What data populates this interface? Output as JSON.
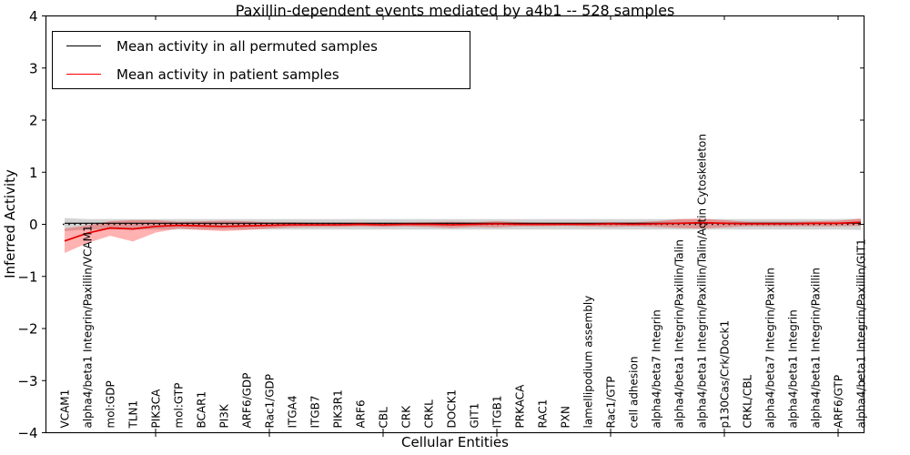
{
  "chart_data": {
    "type": "line",
    "title": "Paxillin-dependent events mediated by a4b1 -- 528 samples",
    "xlabel": "Cellular Entities",
    "ylabel": "Inferred Activity",
    "ylim": [
      -4,
      4
    ],
    "grid": false,
    "legend_position": "upper left",
    "yticks": [
      4,
      3,
      2,
      1,
      0,
      -1,
      -2,
      -3,
      -4
    ],
    "ytick_labels": [
      "4",
      "3",
      "2",
      "1",
      "0",
      "−1",
      "−2",
      "−3",
      "−4"
    ],
    "x_major_tick_indices": [
      4,
      9,
      14,
      19,
      24,
      29,
      34
    ],
    "categories": [
      "VCAM1",
      "alpha4/beta1 Integrin/Paxillin/VCAM1",
      "mol:GDP",
      "TLN1",
      "PIK3CA",
      "mol:GTP",
      "BCAR1",
      "PI3K",
      "ARF6/GDP",
      "Rac1/GDP",
      "ITGA4",
      "ITGB7",
      "PIK3R1",
      "ARF6",
      "CBL",
      "CRK",
      "CRKL",
      "DOCK1",
      "GIT1",
      "ITGB1",
      "PRKACA",
      "RAC1",
      "PXN",
      "lamellipodium assembly",
      "Rac1/GTP",
      "cell adhesion",
      "alpha4/beta7 Integrin",
      "alpha4/beta1 Integrin/Paxillin/Talin",
      "alpha4/beta1 Integrin/Paxillin/Talin/Actin Cytoskeleton",
      "p130Cas/Crk/Dock1",
      "CRKL/CBL",
      "alpha4/beta7 Integrin/Paxillin",
      "alpha4/beta1 Integrin",
      "alpha4/beta1 Integrin/Paxillin",
      "ARF6/GTP",
      "alpha4/beta1 Integrin/Paxillin/GIT1"
    ],
    "series": [
      {
        "name": "Mean activity in all permuted samples",
        "color": "#000000",
        "style": "solid",
        "line_width": 1.1,
        "values": [
          0.02,
          0.02,
          0.02,
          0.02,
          0.02,
          0.02,
          0.02,
          0.02,
          0.02,
          0.02,
          0.02,
          0.02,
          0.02,
          0.02,
          0.02,
          0.02,
          0.02,
          0.02,
          0.02,
          0.02,
          0.02,
          0.02,
          0.02,
          0.02,
          0.02,
          0.02,
          0.02,
          0.02,
          0.02,
          0.02,
          0.02,
          0.02,
          0.02,
          0.02,
          0.02,
          0.02
        ]
      },
      {
        "name": "Mean activity in patient samples",
        "color": "#e60000",
        "style": "solid",
        "line_width": 1.7,
        "values": [
          -0.32,
          -0.17,
          -0.07,
          -0.09,
          -0.04,
          -0.02,
          -0.03,
          -0.04,
          -0.03,
          -0.02,
          -0.01,
          -0.01,
          -0.01,
          0.0,
          -0.01,
          0.0,
          0.0,
          -0.01,
          0.0,
          0.01,
          0.0,
          0.0,
          0.0,
          0.0,
          0.01,
          0.0,
          0.01,
          0.02,
          0.03,
          0.02,
          0.01,
          0.01,
          0.01,
          0.02,
          0.02,
          0.04
        ]
      }
    ],
    "bands": [
      {
        "name": "permuted-samples-spread-band",
        "color": "rgba(110,110,110,0.30)",
        "upper": [
          0.12,
          0.1,
          0.1,
          0.1,
          0.1,
          0.1,
          0.1,
          0.1,
          0.1,
          0.1,
          0.1,
          0.1,
          0.1,
          0.1,
          0.1,
          0.1,
          0.1,
          0.1,
          0.1,
          0.1,
          0.1,
          0.1,
          0.1,
          0.1,
          0.1,
          0.1,
          0.1,
          0.1,
          0.1,
          0.1,
          0.1,
          0.1,
          0.1,
          0.1,
          0.1,
          0.11
        ],
        "lower": [
          -0.13,
          -0.1,
          -0.1,
          -0.1,
          -0.1,
          -0.1,
          -0.1,
          -0.1,
          -0.1,
          -0.1,
          -0.1,
          -0.1,
          -0.1,
          -0.1,
          -0.1,
          -0.1,
          -0.1,
          -0.1,
          -0.1,
          -0.1,
          -0.1,
          -0.1,
          -0.1,
          -0.1,
          -0.1,
          -0.1,
          -0.1,
          -0.1,
          -0.1,
          -0.1,
          -0.1,
          -0.1,
          -0.1,
          -0.1,
          -0.1,
          -0.11
        ]
      },
      {
        "name": "patient-samples-spread-band",
        "color": "rgba(255,0,0,0.30)",
        "upper": [
          -0.08,
          -0.02,
          0.06,
          0.08,
          0.08,
          0.05,
          0.06,
          0.07,
          0.06,
          0.04,
          0.04,
          0.03,
          0.03,
          0.03,
          0.03,
          0.03,
          0.04,
          0.05,
          0.04,
          0.06,
          0.04,
          0.03,
          0.03,
          0.03,
          0.04,
          0.04,
          0.06,
          0.1,
          0.11,
          0.08,
          0.05,
          0.05,
          0.05,
          0.06,
          0.07,
          0.11
        ],
        "lower": [
          -0.55,
          -0.36,
          -0.22,
          -0.33,
          -0.16,
          -0.08,
          -0.11,
          -0.13,
          -0.11,
          -0.08,
          -0.06,
          -0.05,
          -0.05,
          -0.04,
          -0.05,
          -0.04,
          -0.05,
          -0.07,
          -0.05,
          -0.06,
          -0.04,
          -0.04,
          -0.03,
          -0.04,
          -0.05,
          -0.04,
          -0.05,
          -0.07,
          -0.08,
          -0.06,
          -0.04,
          -0.04,
          -0.04,
          -0.04,
          -0.04,
          -0.03
        ]
      }
    ],
    "reference_line": {
      "y": 0,
      "style": "dotted",
      "color": "#000000"
    }
  },
  "legend": {
    "items": [
      {
        "label": "Mean activity in all permuted samples",
        "color": "#000000"
      },
      {
        "label": "Mean activity in patient samples",
        "color": "#ff0000"
      }
    ]
  }
}
